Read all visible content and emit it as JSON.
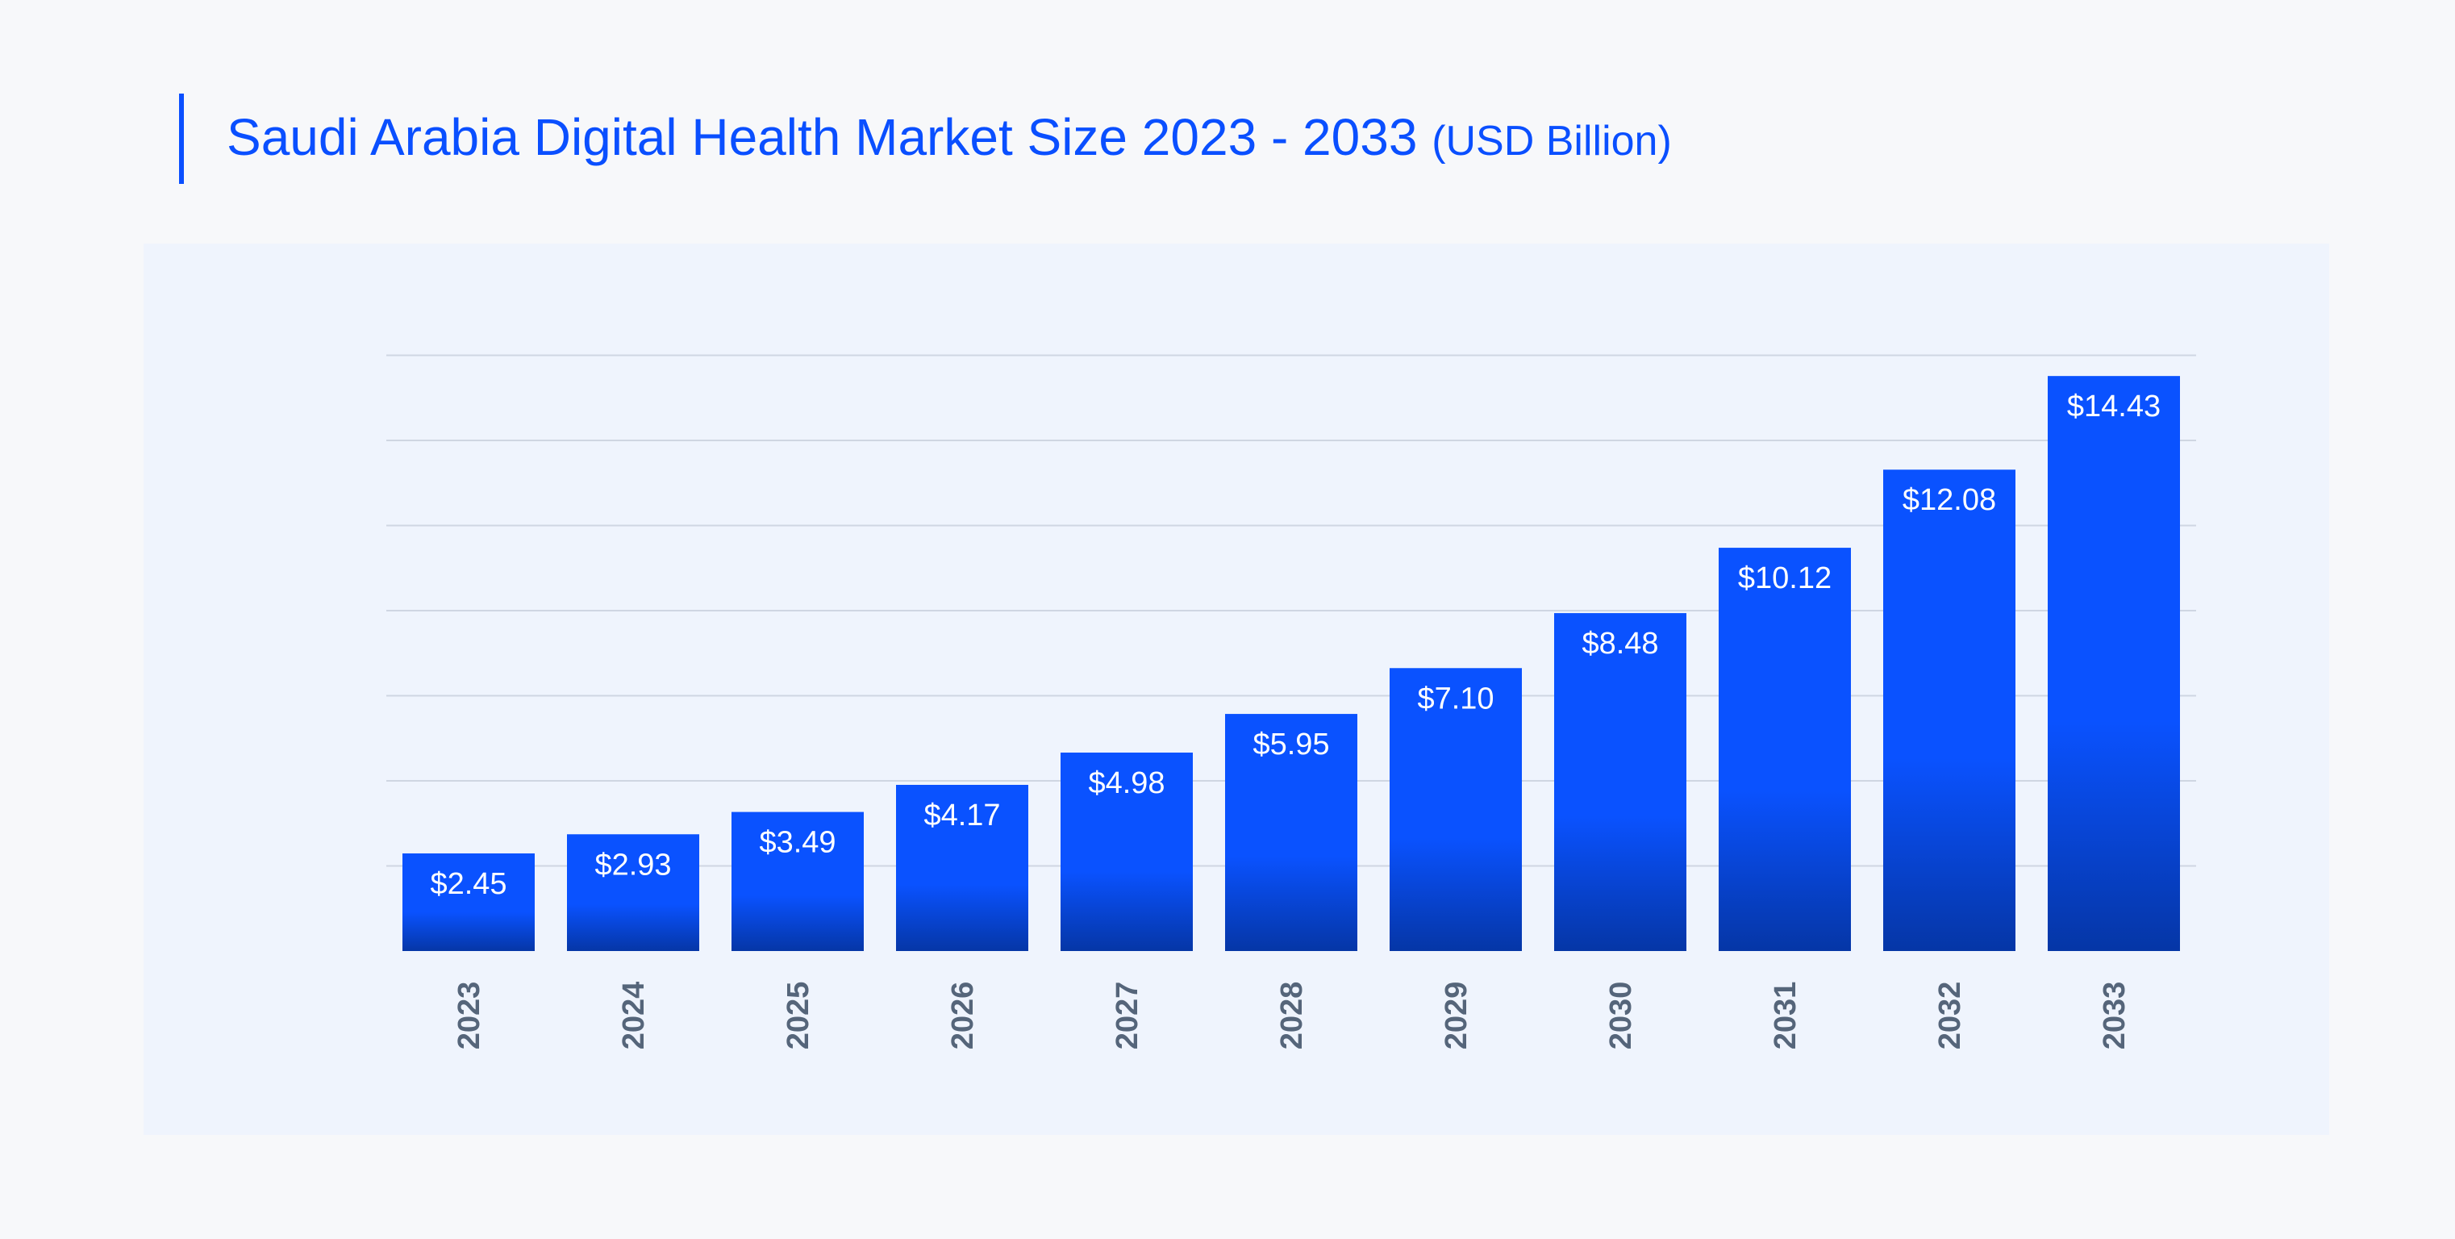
{
  "title": {
    "main": "Saudi Arabia Digital Health Market Size 2023 - 2033",
    "unit": "(USD Billion)"
  },
  "colors": {
    "accent": "#0a4fff",
    "bar_top": "#0a52ff",
    "bar_bottom": "#0536a6",
    "grid": "#cfd6e2",
    "tick_label": "#55657a",
    "panel": "#eff4fd",
    "background": "#f7f8fa"
  },
  "chart_data": {
    "type": "bar",
    "categories": [
      "2023",
      "2024",
      "2025",
      "2026",
      "2027",
      "2028",
      "2029",
      "2030",
      "2031",
      "2032",
      "2033"
    ],
    "values": [
      2.45,
      2.93,
      3.49,
      4.17,
      4.98,
      5.95,
      7.1,
      8.48,
      10.12,
      12.08,
      14.43
    ],
    "data_labels": [
      "$2.45",
      "$2.93",
      "$3.49",
      "$4.17",
      "$4.98",
      "$5.95",
      "$7.10",
      "$8.48",
      "$10.12",
      "$12.08",
      "$14.43"
    ],
    "title": "Saudi Arabia Digital Health Market Size 2023 - 2033 (USD Billion)",
    "xlabel": "",
    "ylabel": "",
    "ylim": [
      0,
      15.2
    ],
    "grid": true,
    "y_axis_labels": false,
    "x_tick_rotation": -90,
    "legend": "none"
  }
}
